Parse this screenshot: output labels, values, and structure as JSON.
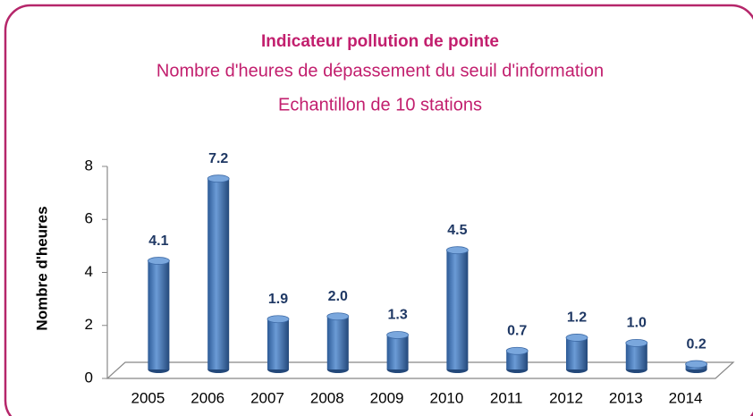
{
  "chart_data": {
    "type": "bar",
    "title": "Indicateur pollution de pointe",
    "subtitle": [
      "Nombre d'heures de dépassement du seuil d'information",
      "Echantillon de 10 stations"
    ],
    "y_label": "Nombre d'heures",
    "categories": [
      "2005",
      "2006",
      "2007",
      "2008",
      "2009",
      "2010",
      "2011",
      "2012",
      "2013",
      "2014"
    ],
    "values": [
      4.1,
      7.2,
      1.9,
      2.0,
      1.3,
      4.5,
      0.7,
      1.2,
      1.0,
      0.2
    ],
    "value_labels": [
      "4.1",
      "7.2",
      "1.9",
      "2.0",
      "1.3",
      "4.5",
      "0.7",
      "1.2",
      "1.0",
      "0.2"
    ],
    "color": "#4f81bd",
    "ylim": [
      0,
      8
    ],
    "yticks": [
      0,
      2,
      4,
      6,
      8
    ]
  }
}
